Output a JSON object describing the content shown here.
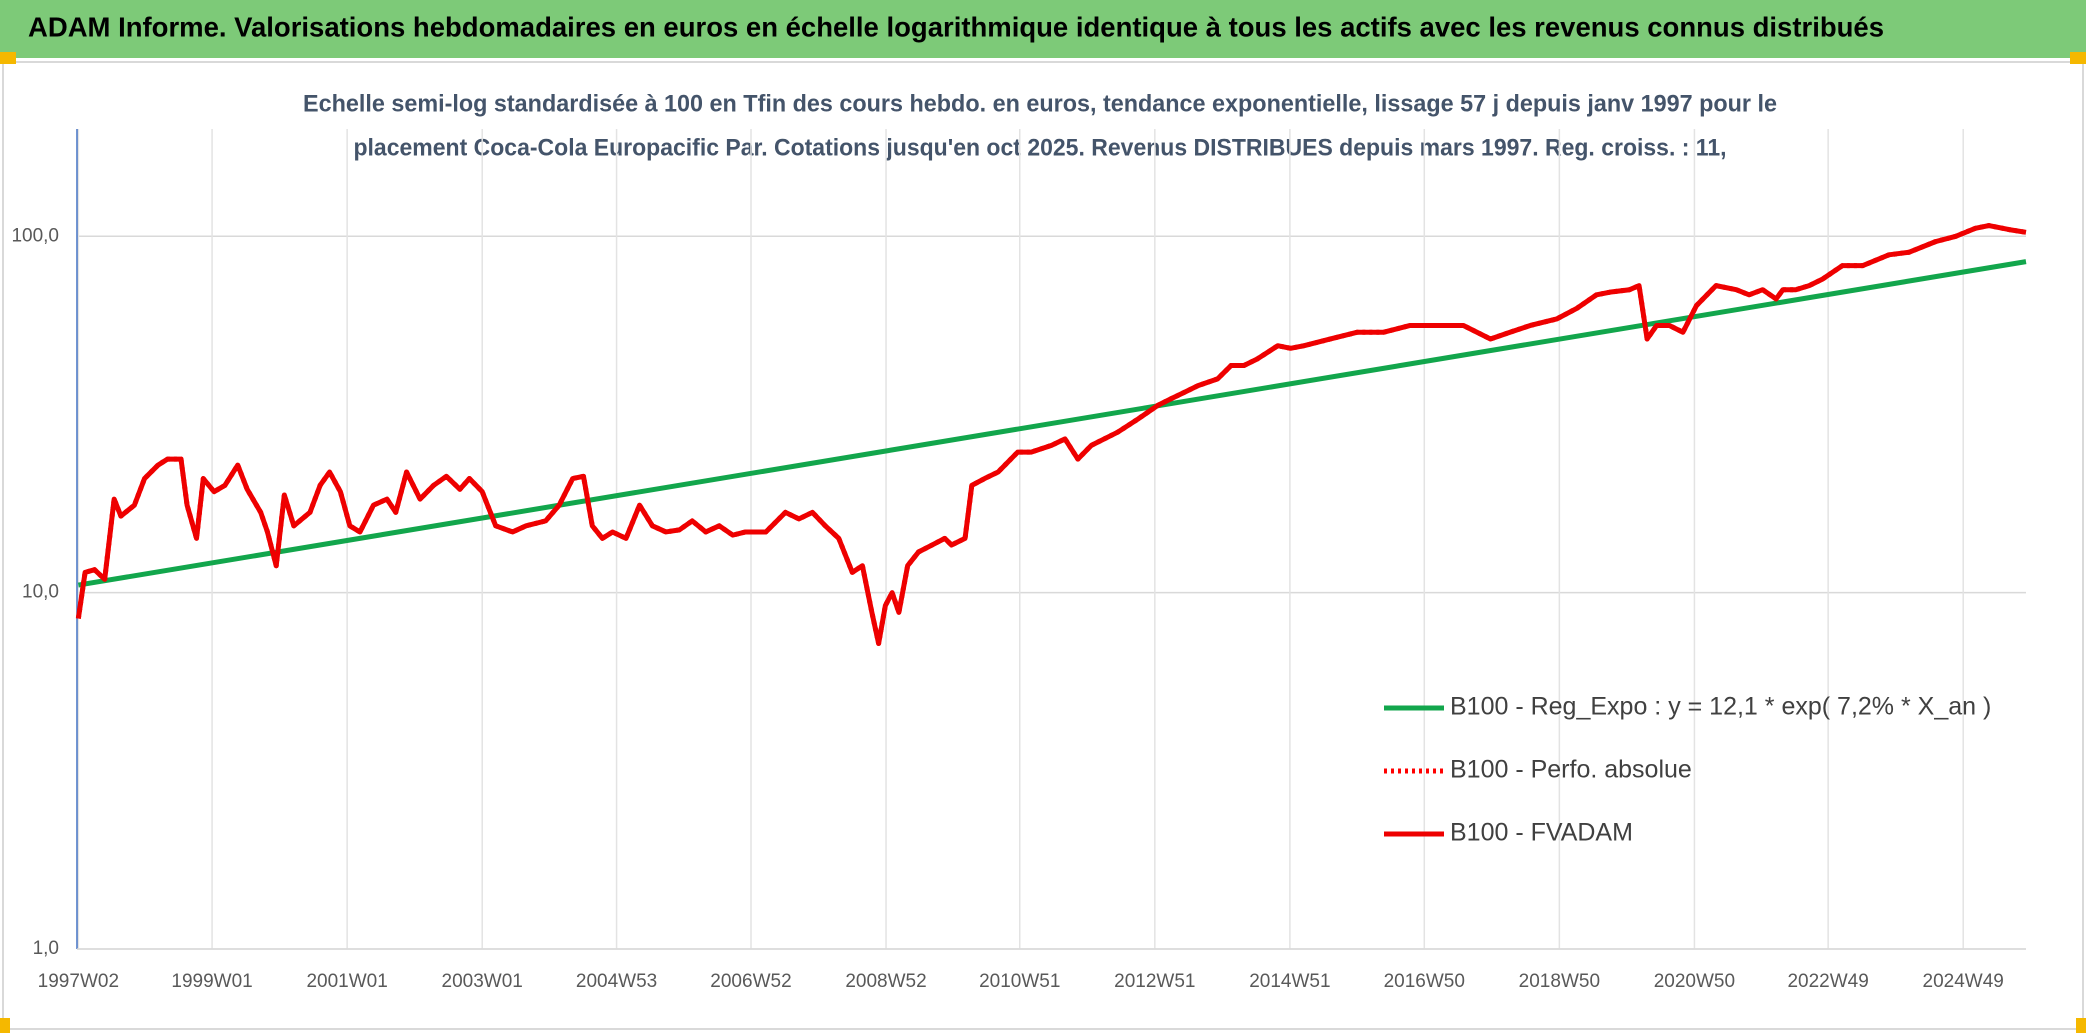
{
  "chart_data": {
    "type": "line",
    "title": "ADAM Informe. Valorisations hebdomadaires en euros en échelle logarithmique identique à tous les actifs avec les revenus connus distribués",
    "subtitle": [
      "Echelle semi-log standardisée à 100 en Tfin des cours hebdo. en euros, tendance exponentielle, lissage 57 j depuis janv 1997 pour le",
      "placement Coca-Cola Europacific Par. Cotations jusqu'en oct 2025. Revenus DISTRIBUES depuis mars 1997. Reg. croiss. : 11,"
    ],
    "log_scale": true,
    "grid": true,
    "legend": "lower right",
    "xlim": [
      1997.0,
      2025.86
    ],
    "xticks": [
      {
        "value": 1997.02,
        "label": "1997W02"
      },
      {
        "value": 1999.0,
        "label": "1999W01"
      },
      {
        "value": 2001.0,
        "label": "2001W01"
      },
      {
        "value": 2003.0,
        "label": "2003W01"
      },
      {
        "value": 2004.99,
        "label": "2004W53"
      },
      {
        "value": 2006.98,
        "label": "2006W52"
      },
      {
        "value": 2008.98,
        "label": "2008W52"
      },
      {
        "value": 2010.96,
        "label": "2010W51"
      },
      {
        "value": 2012.96,
        "label": "2012W51"
      },
      {
        "value": 2014.96,
        "label": "2014W51"
      },
      {
        "value": 2016.95,
        "label": "2016W50"
      },
      {
        "value": 2018.95,
        "label": "2018W50"
      },
      {
        "value": 2020.95,
        "label": "2020W50"
      },
      {
        "value": 2022.93,
        "label": "2022W49"
      },
      {
        "value": 2024.93,
        "label": "2024W49"
      }
    ],
    "ylim": [
      1,
      200
    ],
    "yticks": [
      {
        "value": 1,
        "label": "1,0"
      },
      {
        "value": 10,
        "label": "10,0"
      },
      {
        "value": 100,
        "label": "100,0"
      }
    ],
    "x": [
      1997.02,
      1997.12,
      1997.26,
      1997.41,
      1997.55,
      1997.65,
      1997.85,
      1998.0,
      1998.2,
      1998.34,
      1998.54,
      1998.63,
      1998.77,
      1998.87,
      1999.03,
      1999.19,
      1999.38,
      1999.52,
      1999.72,
      1999.82,
      1999.95,
      2000.07,
      2000.21,
      2000.45,
      2000.6,
      2000.74,
      2000.9,
      2001.04,
      2001.19,
      2001.39,
      2001.59,
      2001.72,
      2001.88,
      2002.08,
      2002.28,
      2002.47,
      2002.67,
      2002.81,
      2003.0,
      2003.2,
      2003.45,
      2003.65,
      2003.94,
      2004.14,
      2004.34,
      2004.5,
      2004.63,
      2004.78,
      2004.93,
      2005.13,
      2005.33,
      2005.52,
      2005.72,
      2005.92,
      2006.11,
      2006.31,
      2006.51,
      2006.71,
      2006.9,
      2007.2,
      2007.49,
      2007.69,
      2007.89,
      2008.08,
      2008.28,
      2008.48,
      2008.63,
      2008.77,
      2008.87,
      2008.97,
      2009.07,
      2009.17,
      2009.3,
      2009.46,
      2009.66,
      2009.85,
      2009.95,
      2010.15,
      2010.25,
      2010.44,
      2010.64,
      2010.93,
      2011.13,
      2011.43,
      2011.63,
      2011.82,
      2012.02,
      2012.41,
      2012.71,
      2013.0,
      2013.2,
      2013.4,
      2013.6,
      2013.89,
      2014.09,
      2014.28,
      2014.48,
      2014.78,
      2014.97,
      2015.17,
      2015.56,
      2015.96,
      2016.35,
      2016.74,
      2017.14,
      2017.53,
      2017.93,
      2018.22,
      2018.52,
      2018.91,
      2019.21,
      2019.5,
      2019.7,
      2019.99,
      2020.13,
      2020.25,
      2020.39,
      2020.58,
      2020.78,
      2020.98,
      2021.27,
      2021.57,
      2021.76,
      2021.96,
      2022.16,
      2022.26,
      2022.45,
      2022.65,
      2022.85,
      2023.14,
      2023.44,
      2023.83,
      2024.13,
      2024.52,
      2024.82,
      2025.11,
      2025.31,
      2025.61,
      2025.86
    ],
    "series": [
      {
        "name": "B100 - Reg_Expo : y = 12,1 * exp( 7,2% *  X_an )",
        "color": "#12a64c",
        "line_style": "solid",
        "x": [
          1997.02,
          2025.86
        ],
        "values": [
          10.5,
          84.9
        ]
      },
      {
        "name": "B100 - Perfo. absolue",
        "color": "#ff0000",
        "line_style": "dotted",
        "values": [
          8.46,
          11.4,
          11.6,
          10.9,
          18.3,
          16.4,
          17.6,
          20.9,
          22.8,
          23.7,
          23.7,
          17.6,
          14.2,
          20.9,
          19.2,
          20.0,
          22.8,
          19.5,
          16.8,
          14.8,
          11.9,
          18.8,
          15.4,
          16.8,
          20.0,
          21.8,
          19.2,
          15.4,
          14.8,
          17.6,
          18.3,
          16.8,
          21.8,
          18.3,
          20.0,
          21.2,
          19.5,
          20.9,
          19.2,
          15.4,
          14.8,
          15.4,
          15.9,
          17.6,
          20.9,
          21.2,
          15.4,
          14.2,
          14.8,
          14.2,
          17.6,
          15.4,
          14.8,
          15.0,
          15.9,
          14.8,
          15.4,
          14.5,
          14.8,
          14.8,
          16.8,
          16.1,
          16.8,
          15.4,
          14.2,
          11.4,
          11.9,
          8.8,
          7.2,
          9.2,
          10.0,
          8.8,
          11.9,
          13.0,
          13.6,
          14.2,
          13.6,
          14.2,
          20.0,
          20.9,
          21.8,
          24.8,
          24.8,
          25.9,
          27.0,
          23.7,
          25.9,
          28.2,
          30.7,
          33.5,
          35.0,
          36.5,
          38.1,
          39.8,
          43.4,
          43.4,
          45.3,
          49.3,
          48.5,
          49.3,
          51.5,
          53.8,
          53.8,
          56.2,
          56.2,
          56.2,
          51.5,
          53.8,
          56.2,
          58.6,
          62.8,
          68.5,
          69.7,
          70.8,
          72.7,
          51.5,
          56.2,
          56.2,
          53.8,
          63.9,
          72.7,
          70.8,
          68.5,
          70.8,
          66.7,
          70.8,
          70.8,
          72.7,
          75.9,
          82.7,
          82.7,
          88.7,
          90.2,
          96.6,
          100,
          105.3,
          107.2,
          104.4,
          102.6
        ]
      },
      {
        "name": "B100 - FVADAM",
        "color": "#ee0000",
        "line_style": "solid",
        "values": [
          8.46,
          11.4,
          11.6,
          10.9,
          18.3,
          16.4,
          17.6,
          20.9,
          22.8,
          23.7,
          23.7,
          17.6,
          14.2,
          20.9,
          19.2,
          20.0,
          22.8,
          19.5,
          16.8,
          14.8,
          11.9,
          18.8,
          15.4,
          16.8,
          20.0,
          21.8,
          19.2,
          15.4,
          14.8,
          17.6,
          18.3,
          16.8,
          21.8,
          18.3,
          20.0,
          21.2,
          19.5,
          20.9,
          19.2,
          15.4,
          14.8,
          15.4,
          15.9,
          17.6,
          20.9,
          21.2,
          15.4,
          14.2,
          14.8,
          14.2,
          17.6,
          15.4,
          14.8,
          15.0,
          15.9,
          14.8,
          15.4,
          14.5,
          14.8,
          14.8,
          16.8,
          16.1,
          16.8,
          15.4,
          14.2,
          11.4,
          11.9,
          8.8,
          7.2,
          9.2,
          10.0,
          8.8,
          11.9,
          13.0,
          13.6,
          14.2,
          13.6,
          14.2,
          20.0,
          20.9,
          21.8,
          24.8,
          24.8,
          25.9,
          27.0,
          23.7,
          25.9,
          28.2,
          30.7,
          33.5,
          35.0,
          36.5,
          38.1,
          39.8,
          43.4,
          43.4,
          45.3,
          49.3,
          48.5,
          49.3,
          51.5,
          53.8,
          53.8,
          56.2,
          56.2,
          56.2,
          51.5,
          53.8,
          56.2,
          58.6,
          62.8,
          68.5,
          69.7,
          70.8,
          72.7,
          51.5,
          56.2,
          56.2,
          53.8,
          63.9,
          72.7,
          70.8,
          68.5,
          70.8,
          66.7,
          70.8,
          70.8,
          72.7,
          75.9,
          82.7,
          82.7,
          88.7,
          90.2,
          96.6,
          100,
          105.3,
          107.2,
          104.4,
          102.6
        ]
      }
    ]
  }
}
